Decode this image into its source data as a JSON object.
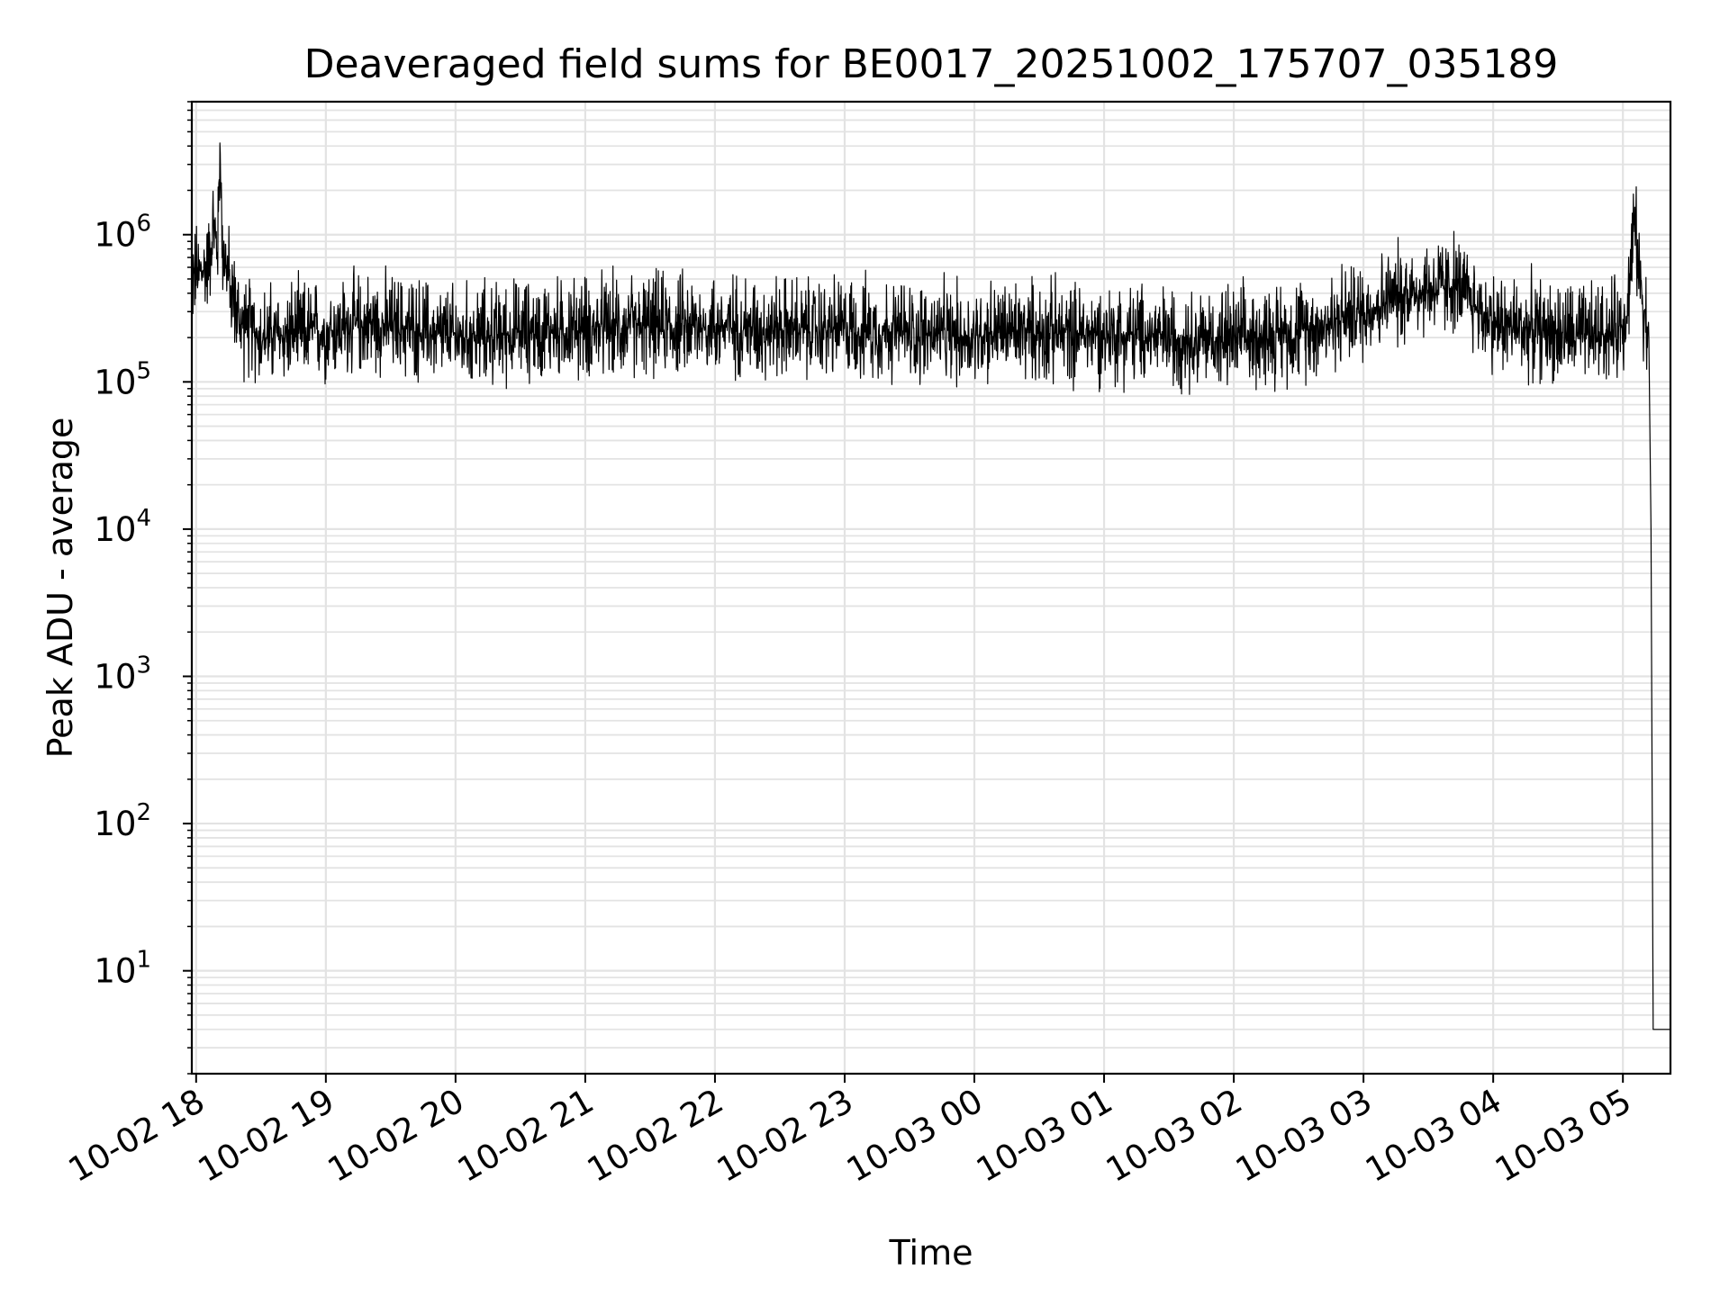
{
  "chart_data": {
    "type": "line",
    "title": "Deaveraged field sums for BE0017_20251002_175707_035189",
    "xlabel": "Time",
    "ylabel": "Peak ADU - average",
    "yscale": "log",
    "ylim": [
      2,
      8000000
    ],
    "xlim": [
      "2025-10-02 17:58",
      "2025-10-03 05:22"
    ],
    "grid": true,
    "x_ticks": [
      "10-02 18",
      "10-02 19",
      "10-02 20",
      "10-02 21",
      "10-02 22",
      "10-02 23",
      "10-03 00",
      "10-03 01",
      "10-03 02",
      "10-03 03",
      "10-03 04",
      "10-03 05"
    ],
    "y_ticks": [
      {
        "base": "10",
        "exp": "1"
      },
      {
        "base": "10",
        "exp": "2"
      },
      {
        "base": "10",
        "exp": "3"
      },
      {
        "base": "10",
        "exp": "4"
      },
      {
        "base": "10",
        "exp": "5"
      },
      {
        "base": "10",
        "exp": "6"
      }
    ],
    "series": [
      {
        "color": "#000000",
        "x": [
          "2025-10-02 17:58",
          "2025-10-02 18:05",
          "2025-10-02 18:08",
          "2025-10-02 18:10",
          "2025-10-02 18:11",
          "2025-10-02 18:12",
          "2025-10-02 18:15",
          "2025-10-02 18:20",
          "2025-10-02 18:30",
          "2025-10-02 19:00",
          "2025-10-02 19:22",
          "2025-10-02 20:00",
          "2025-10-02 21:00",
          "2025-10-02 22:00",
          "2025-10-02 22:45",
          "2025-10-02 23:00",
          "2025-10-03 00:00",
          "2025-10-03 00:05",
          "2025-10-03 01:00",
          "2025-10-03 02:00",
          "2025-10-03 02:30",
          "2025-10-03 03:00",
          "2025-10-03 03:20",
          "2025-10-03 03:42",
          "2025-10-03 04:00",
          "2025-10-03 04:40",
          "2025-10-03 04:57",
          "2025-10-03 05:02",
          "2025-10-03 05:05",
          "2025-10-03 05:08",
          "2025-10-03 05:10",
          "2025-10-03 05:12",
          "2025-10-03 05:13",
          "2025-10-03 05:14",
          "2025-10-03 05:22"
        ],
        "y": [
          500000,
          600000,
          1100000,
          800000,
          4200000,
          900000,
          500000,
          250000,
          200000,
          220000,
          250000,
          200000,
          230000,
          240000,
          220000,
          230000,
          200000,
          220000,
          210000,
          190000,
          220000,
          300000,
          400000,
          450000,
          250000,
          200000,
          220000,
          300000,
          1200000,
          500000,
          300000,
          200000,
          10000,
          4,
          4
        ]
      }
    ],
    "noise": {
      "low_factor": 0.45,
      "high_factor": 2.4
    }
  }
}
